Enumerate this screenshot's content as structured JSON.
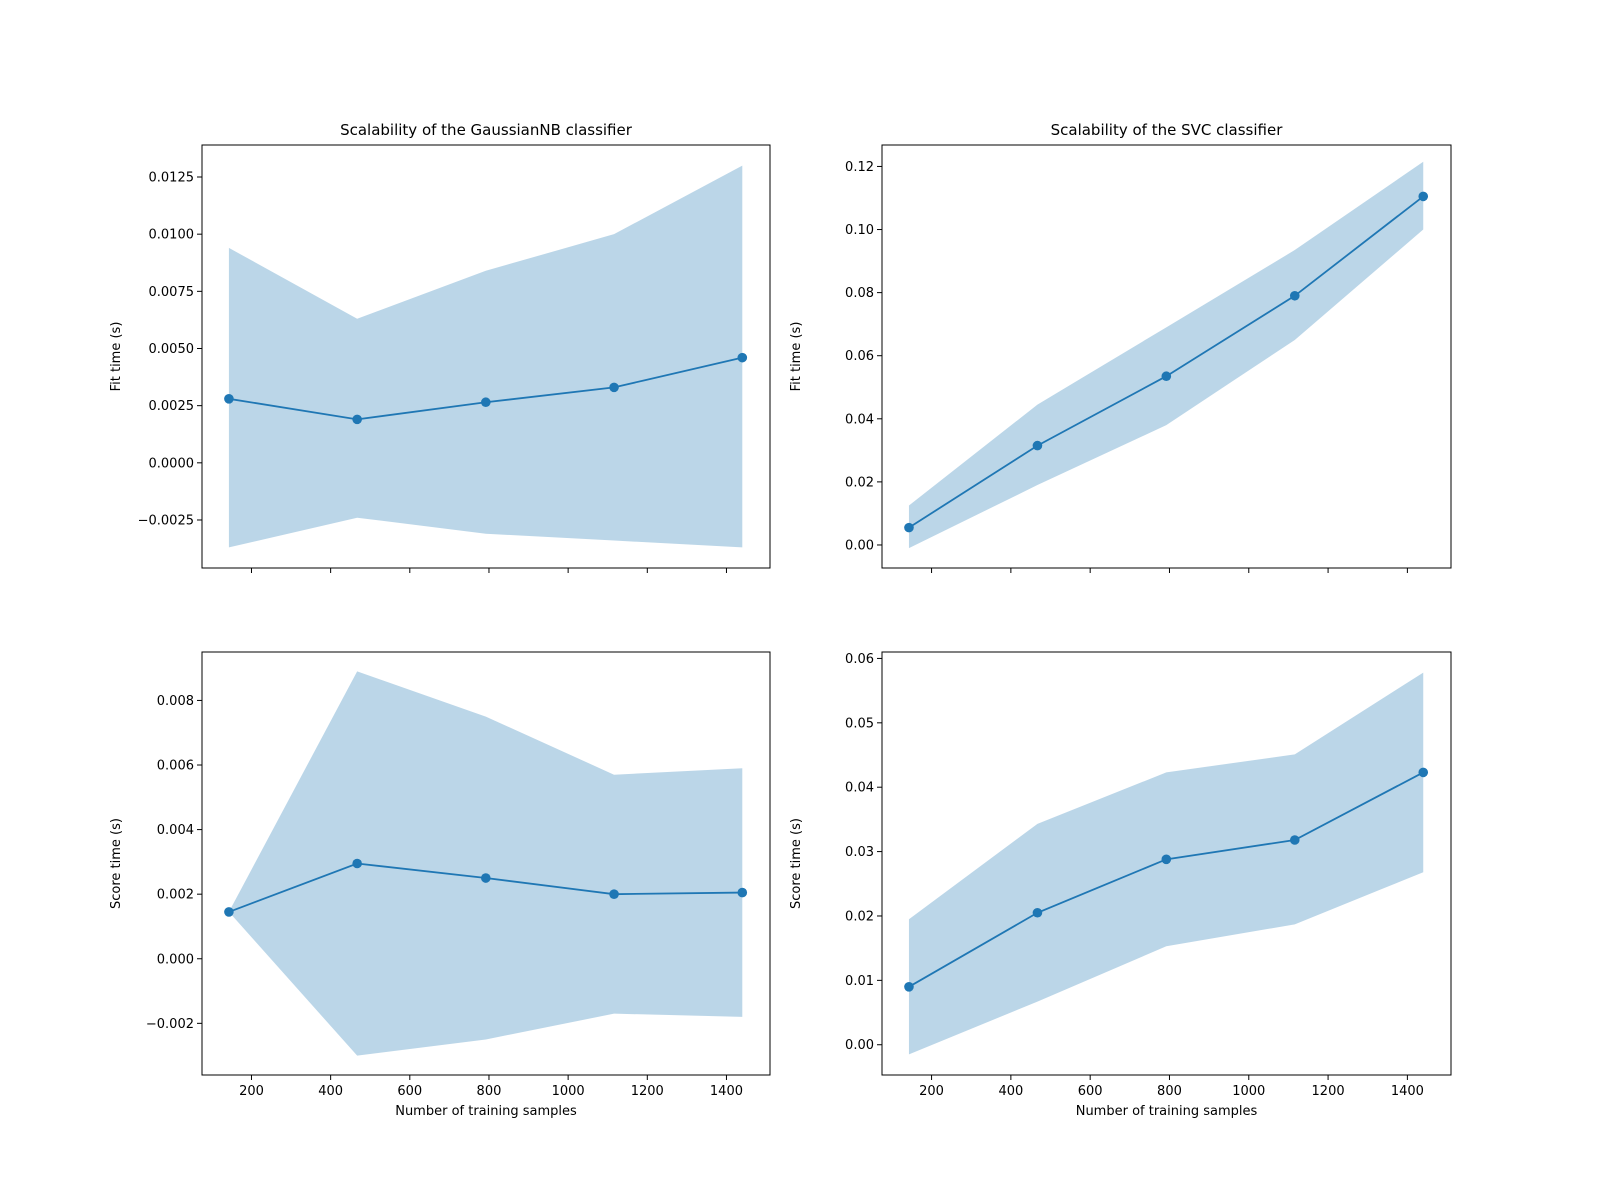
{
  "colors": {
    "line": "#1f77b4",
    "band": "#1f77b4",
    "axis": "#000000",
    "background": "#ffffff"
  },
  "chart_data": [
    {
      "type": "line",
      "title": "Scalability of the GaussianNB classifier",
      "xlabel": "",
      "ylabel": "Fit time (s)",
      "xlim": [
        75,
        1510
      ],
      "ylim": [
        -0.0046,
        0.0139
      ],
      "xticks": [
        200,
        400,
        600,
        800,
        1000,
        1200,
        1400
      ],
      "xtick_labels": [
        "",
        "",
        "",
        "",
        "",
        "",
        ""
      ],
      "yticks": [
        -0.0025,
        0.0,
        0.0025,
        0.005,
        0.0075,
        0.01,
        0.0125
      ],
      "ytick_labels": [
        "−0.0025",
        "0.0000",
        "0.0025",
        "0.0050",
        "0.0075",
        "0.0100",
        "0.0125"
      ],
      "x": [
        143,
        467,
        792,
        1116,
        1440
      ],
      "mean": [
        0.0028,
        0.0019,
        0.00265,
        0.0033,
        0.0046
      ],
      "lower": [
        -0.0037,
        -0.0024,
        -0.0031,
        -0.0034,
        -0.0037
      ],
      "upper": [
        0.0094,
        0.0063,
        0.0084,
        0.01,
        0.013
      ]
    },
    {
      "type": "line",
      "title": "Scalability of the SVC classifier",
      "xlabel": "",
      "ylabel": "Fit time (s)",
      "xlim": [
        75,
        1510
      ],
      "ylim": [
        -0.0073,
        0.1268
      ],
      "xticks": [
        200,
        400,
        600,
        800,
        1000,
        1200,
        1400
      ],
      "xtick_labels": [
        "",
        "",
        "",
        "",
        "",
        "",
        ""
      ],
      "yticks": [
        0.0,
        0.02,
        0.04,
        0.06,
        0.08,
        0.1,
        0.12
      ],
      "ytick_labels": [
        "0.00",
        "0.02",
        "0.04",
        "0.06",
        "0.08",
        "0.10",
        "0.12"
      ],
      "x": [
        143,
        467,
        792,
        1116,
        1440
      ],
      "mean": [
        0.0055,
        0.0315,
        0.0535,
        0.079,
        0.1105
      ],
      "lower": [
        -0.001,
        0.019,
        0.038,
        0.065,
        0.1
      ],
      "upper": [
        0.0125,
        0.0445,
        0.069,
        0.0935,
        0.1215
      ]
    },
    {
      "type": "line",
      "title": "",
      "xlabel": "Number of training samples",
      "ylabel": "Score time (s)",
      "xlim": [
        75,
        1510
      ],
      "ylim": [
        -0.0036,
        0.0095
      ],
      "xticks": [
        200,
        400,
        600,
        800,
        1000,
        1200,
        1400
      ],
      "xtick_labels": [
        "200",
        "400",
        "600",
        "800",
        "1000",
        "1200",
        "1400"
      ],
      "yticks": [
        -0.002,
        0.0,
        0.002,
        0.004,
        0.006,
        0.008
      ],
      "ytick_labels": [
        "−0.002",
        "0.000",
        "0.002",
        "0.004",
        "0.006",
        "0.008"
      ],
      "x": [
        143,
        467,
        792,
        1116,
        1440
      ],
      "mean": [
        0.00145,
        0.00295,
        0.0025,
        0.002,
        0.00205
      ],
      "lower": [
        0.00145,
        -0.003,
        -0.0025,
        -0.0017,
        -0.0018
      ],
      "upper": [
        0.00145,
        0.0089,
        0.0075,
        0.0057,
        0.0059
      ]
    },
    {
      "type": "line",
      "title": "",
      "xlabel": "Number of training samples",
      "ylabel": "Score time (s)",
      "xlim": [
        75,
        1510
      ],
      "ylim": [
        -0.0047,
        0.061
      ],
      "xticks": [
        200,
        400,
        600,
        800,
        1000,
        1200,
        1400
      ],
      "xtick_labels": [
        "200",
        "400",
        "600",
        "800",
        "1000",
        "1200",
        "1400"
      ],
      "yticks": [
        0.0,
        0.01,
        0.02,
        0.03,
        0.04,
        0.05,
        0.06
      ],
      "ytick_labels": [
        "0.00",
        "0.01",
        "0.02",
        "0.03",
        "0.04",
        "0.05",
        "0.06"
      ],
      "x": [
        143,
        467,
        792,
        1116,
        1440
      ],
      "mean": [
        0.009,
        0.0205,
        0.0288,
        0.0318,
        0.0423
      ],
      "lower": [
        -0.0015,
        0.0067,
        0.0153,
        0.0187,
        0.0268
      ],
      "upper": [
        0.0195,
        0.0343,
        0.0423,
        0.0451,
        0.0578
      ]
    }
  ]
}
